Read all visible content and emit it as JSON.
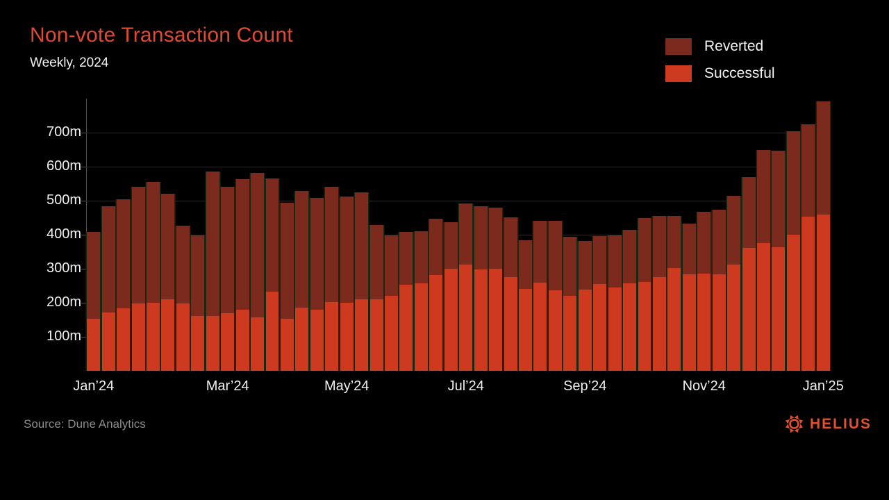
{
  "title": "Non-vote Transaction Count",
  "subtitle": "Weekly, 2024",
  "source": "Source: Dune Analytics",
  "brand": {
    "name": "HELIUS",
    "color": "#E4502B",
    "icon": "helius-sun-icon"
  },
  "legend": [
    {
      "label": "Reverted",
      "color": "#7B2A1D"
    },
    {
      "label": "Successful",
      "color": "#CD3A20"
    }
  ],
  "chart_data": {
    "type": "bar",
    "stacked": true,
    "title": "Non-vote Transaction Count",
    "subtitle": "Weekly, 2024",
    "unit": "millions of transactions",
    "x_axis": "weeks, Jan 2024 through Jan 2025 (50 weekly bars)",
    "ylim": [
      0,
      800
    ],
    "grid": "horizontal",
    "legend_position": "top-right",
    "y_tick_labels": [
      "100m",
      "200m",
      "300m",
      "400m",
      "500m",
      "600m",
      "700m"
    ],
    "x_tick_labels": [
      {
        "label": "Jan’24",
        "week_index": 1
      },
      {
        "label": "Mar’24",
        "week_index": 10
      },
      {
        "label": "May’24",
        "week_index": 18
      },
      {
        "label": "Jul’24",
        "week_index": 26
      },
      {
        "label": "Sep’24",
        "week_index": 34
      },
      {
        "label": "Nov’24",
        "week_index": 42
      },
      {
        "label": "Jan’25",
        "week_index": 50
      }
    ],
    "series": [
      {
        "name": "Successful",
        "color": "#CD3A20",
        "stack_order": "bottom",
        "values": [
          153,
          172,
          184,
          197,
          201,
          211,
          198,
          161,
          161,
          169,
          180,
          157,
          233,
          153,
          186,
          180,
          202,
          200,
          211,
          210,
          220,
          254,
          257,
          282,
          301,
          313,
          297,
          301,
          275,
          241,
          260,
          237,
          220,
          239,
          256,
          245,
          258,
          261,
          275,
          302,
          284,
          285,
          284,
          313,
          362,
          375,
          364,
          401,
          454,
          460
        ]
      },
      {
        "name": "Reverted",
        "color": "#7B2A1D",
        "stack_order": "top",
        "values": [
          255,
          311,
          321,
          343,
          355,
          310,
          229,
          238,
          424,
          371,
          383,
          424,
          333,
          341,
          342,
          329,
          338,
          313,
          314,
          218,
          178,
          154,
          154,
          166,
          136,
          179,
          187,
          178,
          176,
          143,
          181,
          204,
          173,
          142,
          140,
          153,
          157,
          189,
          181,
          153,
          148,
          183,
          189,
          201,
          207,
          273,
          283,
          303,
          270,
          332
        ]
      }
    ],
    "totals": [
      408,
      483,
      505,
      540,
      556,
      521,
      427,
      399,
      585,
      540,
      563,
      581,
      566,
      494,
      528,
      509,
      540,
      513,
      525,
      428,
      398,
      408,
      411,
      448,
      437,
      492,
      484,
      479,
      451,
      384,
      441,
      441,
      393,
      381,
      396,
      398,
      415,
      450,
      456,
      455,
      432,
      468,
      473,
      514,
      569,
      648,
      647,
      704,
      724,
      792
    ]
  }
}
